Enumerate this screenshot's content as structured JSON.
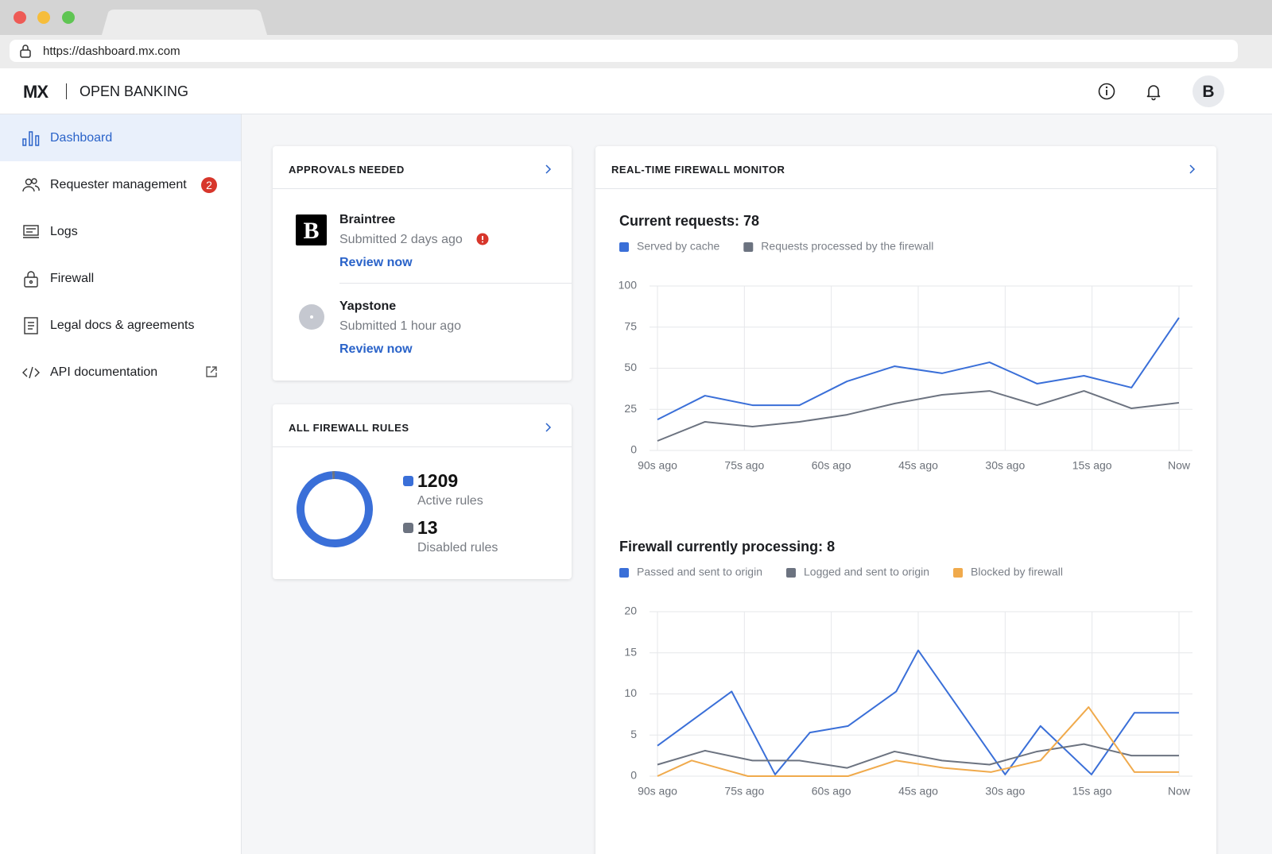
{
  "browser": {
    "url": "https://dashboard.mx.com"
  },
  "header": {
    "logo": "MX",
    "product": "OPEN BANKING",
    "avatar": "B"
  },
  "sidebar": {
    "items": [
      {
        "label": "Dashboard"
      },
      {
        "label": "Requester management",
        "badge": 2
      },
      {
        "label": "Logs"
      },
      {
        "label": "Firewall"
      },
      {
        "label": "Legal docs & agreements"
      },
      {
        "label": "API documentation"
      }
    ]
  },
  "approvals": {
    "title": "APPROVALS NEEDED",
    "items": [
      {
        "logo": "B",
        "name": "Braintree",
        "submitted": "Submitted 2 days ago",
        "action": "Review now"
      },
      {
        "name": "Yapstone",
        "submitted": "Submitted 1 hour ago",
        "action": "Review now"
      }
    ]
  },
  "rules": {
    "title": "ALL FIREWALL RULES"
  },
  "monitor": {
    "title": "REAL-TIME FIREWALL MONITOR"
  },
  "chart_data": [
    {
      "type": "pie",
      "donut": true,
      "categories": [
        "Active rules",
        "Disabled rules"
      ],
      "values": [
        1209,
        13
      ],
      "colors": [
        "#3a6fd8",
        "#6c7380"
      ]
    },
    {
      "type": "line",
      "title": "Current requests: 78",
      "grid": true,
      "xlim": [
        -90,
        0
      ],
      "xticks": [
        {
          "value": -90,
          "label": "90s ago"
        },
        {
          "value": -75,
          "label": "75s ago"
        },
        {
          "value": -60,
          "label": "60s ago"
        },
        {
          "value": -45,
          "label": "45s ago"
        },
        {
          "value": -30,
          "label": "30s ago"
        },
        {
          "value": -15,
          "label": "15s ago"
        },
        {
          "value": 0,
          "label": "Now"
        }
      ],
      "ylim": [
        0,
        100
      ],
      "yticks": [
        0,
        25,
        50,
        75,
        100
      ],
      "series": [
        {
          "name": "Served by cache",
          "color": "#3a6fd8",
          "x": [
            -90,
            -81.8,
            -73.6,
            -65.5,
            -57.3,
            -49.1,
            -40.9,
            -32.7,
            -24.5,
            -16.4,
            -8.2,
            0
          ],
          "values": [
            18.8,
            33.3,
            27.5,
            27.5,
            42,
            51.2,
            46.9,
            53.6,
            40.6,
            45.4,
            38.2,
            80.7
          ]
        },
        {
          "name": "Requests processed by the firewall",
          "color": "#6c7380",
          "x": [
            -90,
            -81.8,
            -73.6,
            -65.5,
            -57.3,
            -49.1,
            -40.9,
            -32.7,
            -24.5,
            -16.4,
            -8.2,
            0
          ],
          "values": [
            5.8,
            17.4,
            14.5,
            17.4,
            21.7,
            28.5,
            33.8,
            36.2,
            27.5,
            36.2,
            25.6,
            29
          ]
        }
      ]
    },
    {
      "type": "line",
      "title": "Firewall currently processing: 8",
      "grid": true,
      "xlim": [
        -90,
        0
      ],
      "xticks": [
        {
          "value": -90,
          "label": "90s ago"
        },
        {
          "value": -75,
          "label": "75s ago"
        },
        {
          "value": -60,
          "label": "60s ago"
        },
        {
          "value": -45,
          "label": "45s ago"
        },
        {
          "value": -30,
          "label": "30s ago"
        },
        {
          "value": -15,
          "label": "15s ago"
        },
        {
          "value": 0,
          "label": "Now"
        }
      ],
      "ylim": [
        0,
        20
      ],
      "yticks": [
        0,
        5,
        10,
        15,
        20
      ],
      "series": [
        {
          "name": "Passed and sent to origin",
          "color": "#3a6fd8",
          "x": [
            -90,
            -77.2,
            -69.7,
            -63.7,
            -57.1,
            -48.8,
            -45,
            -30,
            -23.9,
            -15.1,
            -7.7,
            0
          ],
          "values": [
            3.7,
            10.3,
            0.2,
            5.3,
            6.1,
            10.3,
            15.3,
            0.2,
            6.1,
            0.2,
            7.7,
            7.7
          ]
        },
        {
          "name": "Logged and sent to origin",
          "color": "#6c7380",
          "x": [
            -90,
            -81.8,
            -73.6,
            -65.5,
            -57.3,
            -49.1,
            -40.9,
            -32.7,
            -24.5,
            -16.4,
            -8.2,
            0
          ],
          "values": [
            1.4,
            3.1,
            1.9,
            1.9,
            1,
            3,
            1.9,
            1.4,
            3,
            3.9,
            2.5,
            2.5
          ]
        },
        {
          "name": "Blocked by firewall",
          "color": "#f0aa4c",
          "x": [
            -90,
            -84.1,
            -74.4,
            -66.3,
            -57.1,
            -48.8,
            -40.6,
            -32.4,
            -23.9,
            -15.6,
            -7.7,
            0
          ],
          "values": [
            0,
            1.9,
            0,
            0,
            0,
            1.9,
            1,
            0.5,
            1.9,
            8.4,
            0.5,
            0.5
          ]
        }
      ]
    }
  ]
}
